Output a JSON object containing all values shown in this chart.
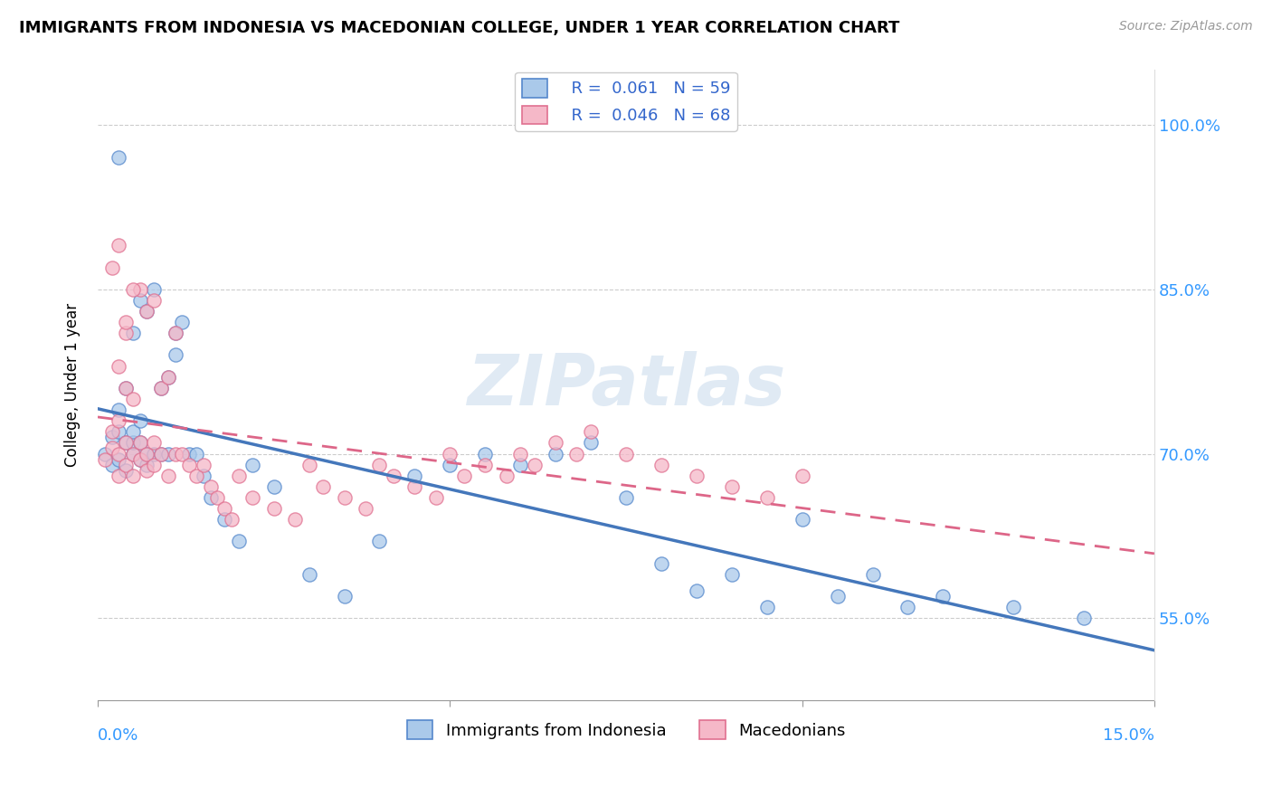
{
  "title": "IMMIGRANTS FROM INDONESIA VS MACEDONIAN COLLEGE, UNDER 1 YEAR CORRELATION CHART",
  "source": "Source: ZipAtlas.com",
  "ylabel": "College, Under 1 year",
  "yticks": [
    "55.0%",
    "70.0%",
    "85.0%",
    "100.0%"
  ],
  "ytick_vals": [
    0.55,
    0.7,
    0.85,
    1.0
  ],
  "xlim": [
    0.0,
    0.15
  ],
  "ylim": [
    0.475,
    1.05
  ],
  "watermark": "ZIPatlas",
  "blue_color": "#aac9ea",
  "blue_edge": "#5588cc",
  "pink_color": "#f5b8c8",
  "pink_edge": "#e07090",
  "trend_blue": "#4477bb",
  "trend_pink": "#dd6688",
  "blue_scatter_x": [
    0.001,
    0.002,
    0.002,
    0.003,
    0.003,
    0.003,
    0.004,
    0.004,
    0.004,
    0.005,
    0.005,
    0.005,
    0.005,
    0.006,
    0.006,
    0.006,
    0.006,
    0.007,
    0.007,
    0.007,
    0.008,
    0.008,
    0.009,
    0.009,
    0.01,
    0.01,
    0.011,
    0.011,
    0.012,
    0.013,
    0.014,
    0.015,
    0.016,
    0.018,
    0.02,
    0.022,
    0.025,
    0.03,
    0.035,
    0.04,
    0.045,
    0.05,
    0.055,
    0.06,
    0.065,
    0.07,
    0.075,
    0.08,
    0.085,
    0.09,
    0.095,
    0.1,
    0.105,
    0.11,
    0.115,
    0.12,
    0.13,
    0.14,
    0.003
  ],
  "blue_scatter_y": [
    0.7,
    0.69,
    0.715,
    0.695,
    0.72,
    0.74,
    0.685,
    0.71,
    0.76,
    0.7,
    0.71,
    0.72,
    0.81,
    0.695,
    0.71,
    0.73,
    0.84,
    0.69,
    0.7,
    0.83,
    0.7,
    0.85,
    0.7,
    0.76,
    0.7,
    0.77,
    0.79,
    0.81,
    0.82,
    0.7,
    0.7,
    0.68,
    0.66,
    0.64,
    0.62,
    0.69,
    0.67,
    0.59,
    0.57,
    0.62,
    0.68,
    0.69,
    0.7,
    0.69,
    0.7,
    0.71,
    0.66,
    0.6,
    0.575,
    0.59,
    0.56,
    0.64,
    0.57,
    0.59,
    0.56,
    0.57,
    0.56,
    0.55,
    0.97
  ],
  "pink_scatter_x": [
    0.001,
    0.002,
    0.002,
    0.003,
    0.003,
    0.003,
    0.004,
    0.004,
    0.004,
    0.005,
    0.005,
    0.005,
    0.006,
    0.006,
    0.006,
    0.007,
    0.007,
    0.007,
    0.008,
    0.008,
    0.008,
    0.009,
    0.009,
    0.01,
    0.01,
    0.011,
    0.011,
    0.012,
    0.013,
    0.014,
    0.015,
    0.016,
    0.017,
    0.018,
    0.019,
    0.02,
    0.022,
    0.025,
    0.028,
    0.03,
    0.032,
    0.035,
    0.038,
    0.04,
    0.042,
    0.045,
    0.048,
    0.05,
    0.052,
    0.055,
    0.058,
    0.06,
    0.062,
    0.065,
    0.068,
    0.07,
    0.075,
    0.08,
    0.085,
    0.09,
    0.095,
    0.1,
    0.003,
    0.002,
    0.004,
    0.003,
    0.004,
    0.005
  ],
  "pink_scatter_y": [
    0.695,
    0.705,
    0.72,
    0.68,
    0.7,
    0.73,
    0.69,
    0.71,
    0.76,
    0.68,
    0.7,
    0.75,
    0.695,
    0.71,
    0.85,
    0.685,
    0.7,
    0.83,
    0.69,
    0.71,
    0.84,
    0.7,
    0.76,
    0.68,
    0.77,
    0.7,
    0.81,
    0.7,
    0.69,
    0.68,
    0.69,
    0.67,
    0.66,
    0.65,
    0.64,
    0.68,
    0.66,
    0.65,
    0.64,
    0.69,
    0.67,
    0.66,
    0.65,
    0.69,
    0.68,
    0.67,
    0.66,
    0.7,
    0.68,
    0.69,
    0.68,
    0.7,
    0.69,
    0.71,
    0.7,
    0.72,
    0.7,
    0.69,
    0.68,
    0.67,
    0.66,
    0.68,
    0.89,
    0.87,
    0.81,
    0.78,
    0.82,
    0.85
  ]
}
